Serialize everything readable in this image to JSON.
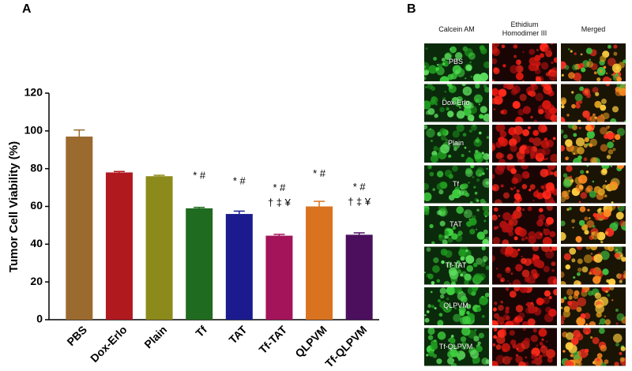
{
  "chart_data": {
    "type": "bar",
    "panel_label": "A",
    "y_label": "Tumor Cell Viability (%)",
    "categories": [
      "PBS",
      "Dox-Erlo",
      "Plain",
      "Tf",
      "TAT",
      "Tf-TAT",
      "QLPVM",
      "Tf-QLPVM"
    ],
    "values": [
      97,
      78,
      76,
      59,
      56,
      44.5,
      60,
      45
    ],
    "errors": [
      3.5,
      0.5,
      0.5,
      0.5,
      1.5,
      0.7,
      2.7,
      1
    ],
    "colors": [
      "#9b6a2e",
      "#b0191e",
      "#8c8a1a",
      "#1f6b1f",
      "#1b1b8f",
      "#a3145a",
      "#d9731f",
      "#4b0f5e"
    ],
    "significance": [
      [],
      [],
      [],
      [
        "* #"
      ],
      [
        "* #"
      ],
      [
        "* #",
        "† ‡ ¥"
      ],
      [
        "* #"
      ],
      [
        "* #",
        "† ‡ ¥"
      ]
    ],
    "ylim": [
      0,
      120
    ],
    "yticks": [
      0,
      20,
      40,
      60,
      80,
      100,
      120
    ]
  },
  "panel_b": {
    "panel_label": "B",
    "columns": [
      "Calcein AM",
      "Ethidium Homodimer III",
      "Merged"
    ],
    "rows": [
      "PBS",
      "Dox-Erlo",
      "Plain",
      "Tf",
      "TAT",
      "Tf-TAT",
      "QLPVM",
      "Tf-QLPVM"
    ]
  }
}
